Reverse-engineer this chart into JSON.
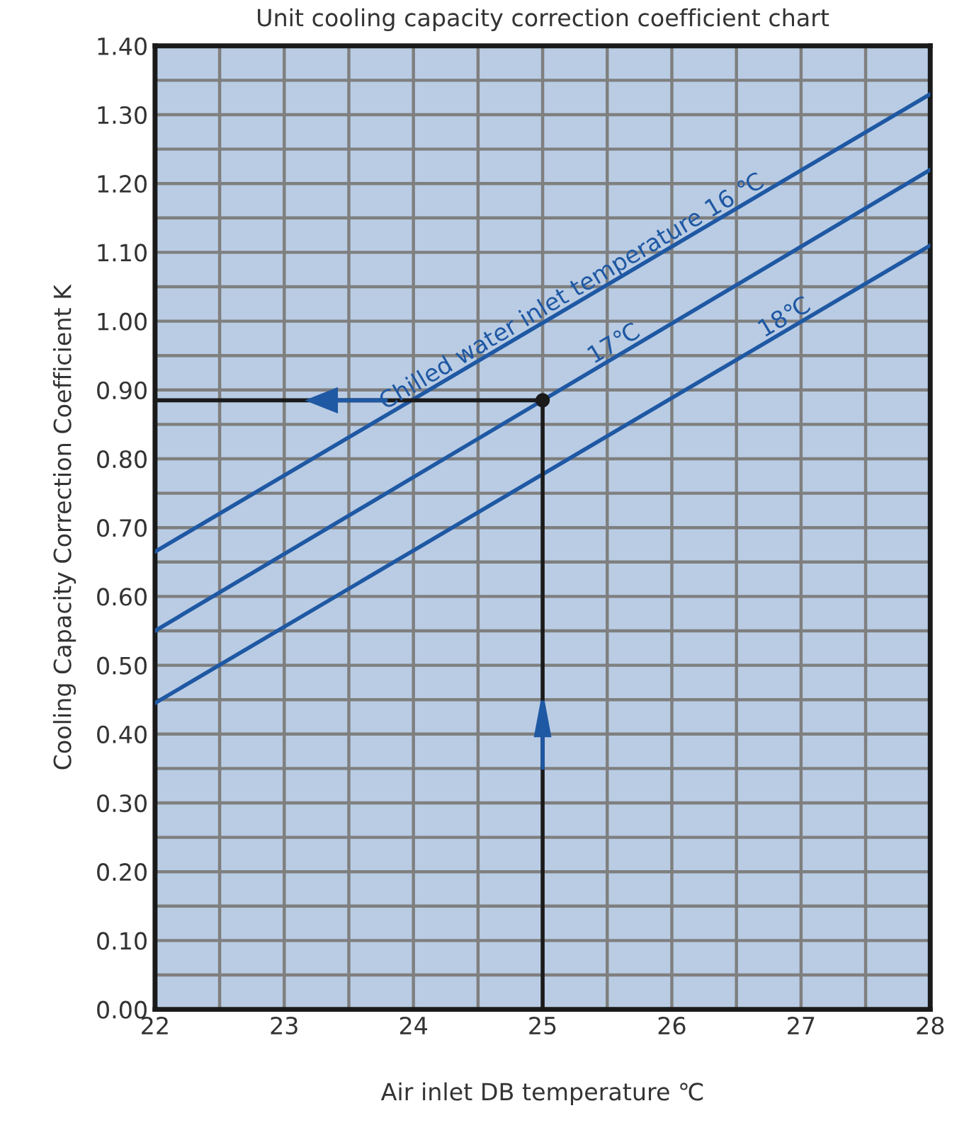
{
  "chart_data": {
    "type": "line",
    "title": "Unit cooling capacity correction coefficient chart",
    "xlabel": "Air inlet DB temperature ℃",
    "ylabel": "Cooling Capacity Correction Coefficient K",
    "series": [
      {
        "name": "Chilled water inlet temperature 16 ℃",
        "color": "#1f58a3",
        "x": [
          22,
          28
        ],
        "values": [
          0.665,
          1.33
        ]
      },
      {
        "name": "17℃",
        "color": "#1f58a3",
        "x": [
          22,
          28
        ],
        "values": [
          0.55,
          1.22
        ]
      },
      {
        "name": "18℃",
        "color": "#1f58a3",
        "x": [
          22,
          28
        ],
        "values": [
          0.445,
          1.11
        ]
      },
      {
        "color": "#1a1a1a",
        "x": [
          22,
          25,
          25
        ],
        "values": [
          0.885,
          0.885,
          0
        ]
      },
      {
        "type": "scatter",
        "color": "#1a1a1a",
        "x": [
          25
        ],
        "values": [
          0.885
        ],
        "marker": "circle"
      }
    ],
    "xlim": [
      22,
      28
    ],
    "ylim": [
      0,
      1.4
    ],
    "xticks": [
      22,
      23,
      24,
      25,
      26,
      27,
      28
    ],
    "yticks": [
      {
        "value": 0,
        "label": "0.00"
      },
      {
        "value": 0.1,
        "label": "0.10"
      },
      {
        "value": 0.2,
        "label": "0.20"
      },
      {
        "value": 0.3,
        "label": "0.30"
      },
      {
        "value": 0.4,
        "label": "0.40"
      },
      {
        "value": 0.5,
        "label": "0.50"
      },
      {
        "value": 0.6,
        "label": "0.60"
      },
      {
        "value": 0.7,
        "label": "0.70"
      },
      {
        "value": 0.8,
        "label": "0.80"
      },
      {
        "value": 0.9,
        "label": "0.90"
      },
      {
        "value": 1.0,
        "label": "1.00"
      },
      {
        "value": 1.1,
        "label": "1.10"
      },
      {
        "value": 1.2,
        "label": "1.20"
      },
      {
        "value": 1.3,
        "label": "1.30"
      },
      {
        "value": 1.4,
        "label": "1.40"
      }
    ],
    "grid": true,
    "legend": false
  }
}
